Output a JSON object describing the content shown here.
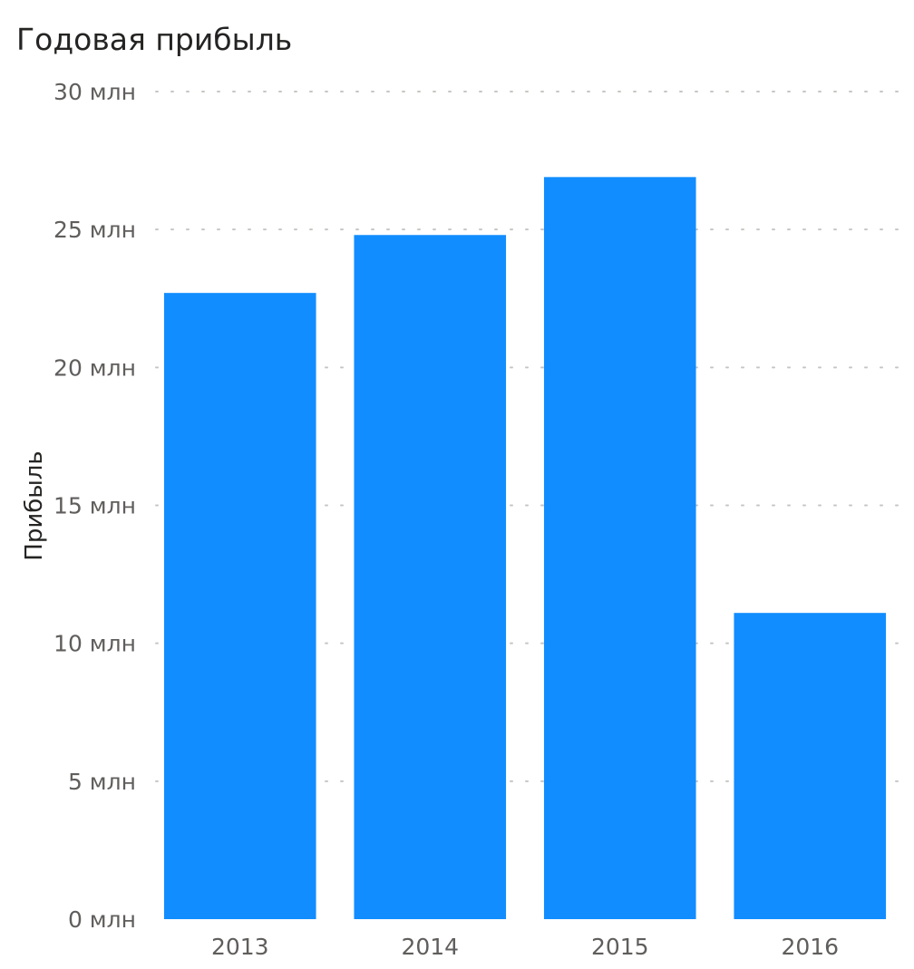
{
  "chart_data": {
    "type": "bar",
    "title": "Годовая прибыль",
    "xlabel": "",
    "ylabel": "Прибыль",
    "categories": [
      "2013",
      "2014",
      "2015",
      "2016"
    ],
    "values": [
      22.7,
      24.8,
      26.9,
      11.1
    ],
    "ylim": [
      0,
      30
    ],
    "yticks": [
      0,
      5,
      10,
      15,
      20,
      25,
      30
    ],
    "ytick_labels": [
      "0 млн",
      "5 млн",
      "10 млн",
      "15 млн",
      "20 млн",
      "25 млн",
      "30 млн"
    ],
    "grid": true,
    "bar_color": "#118dff"
  }
}
